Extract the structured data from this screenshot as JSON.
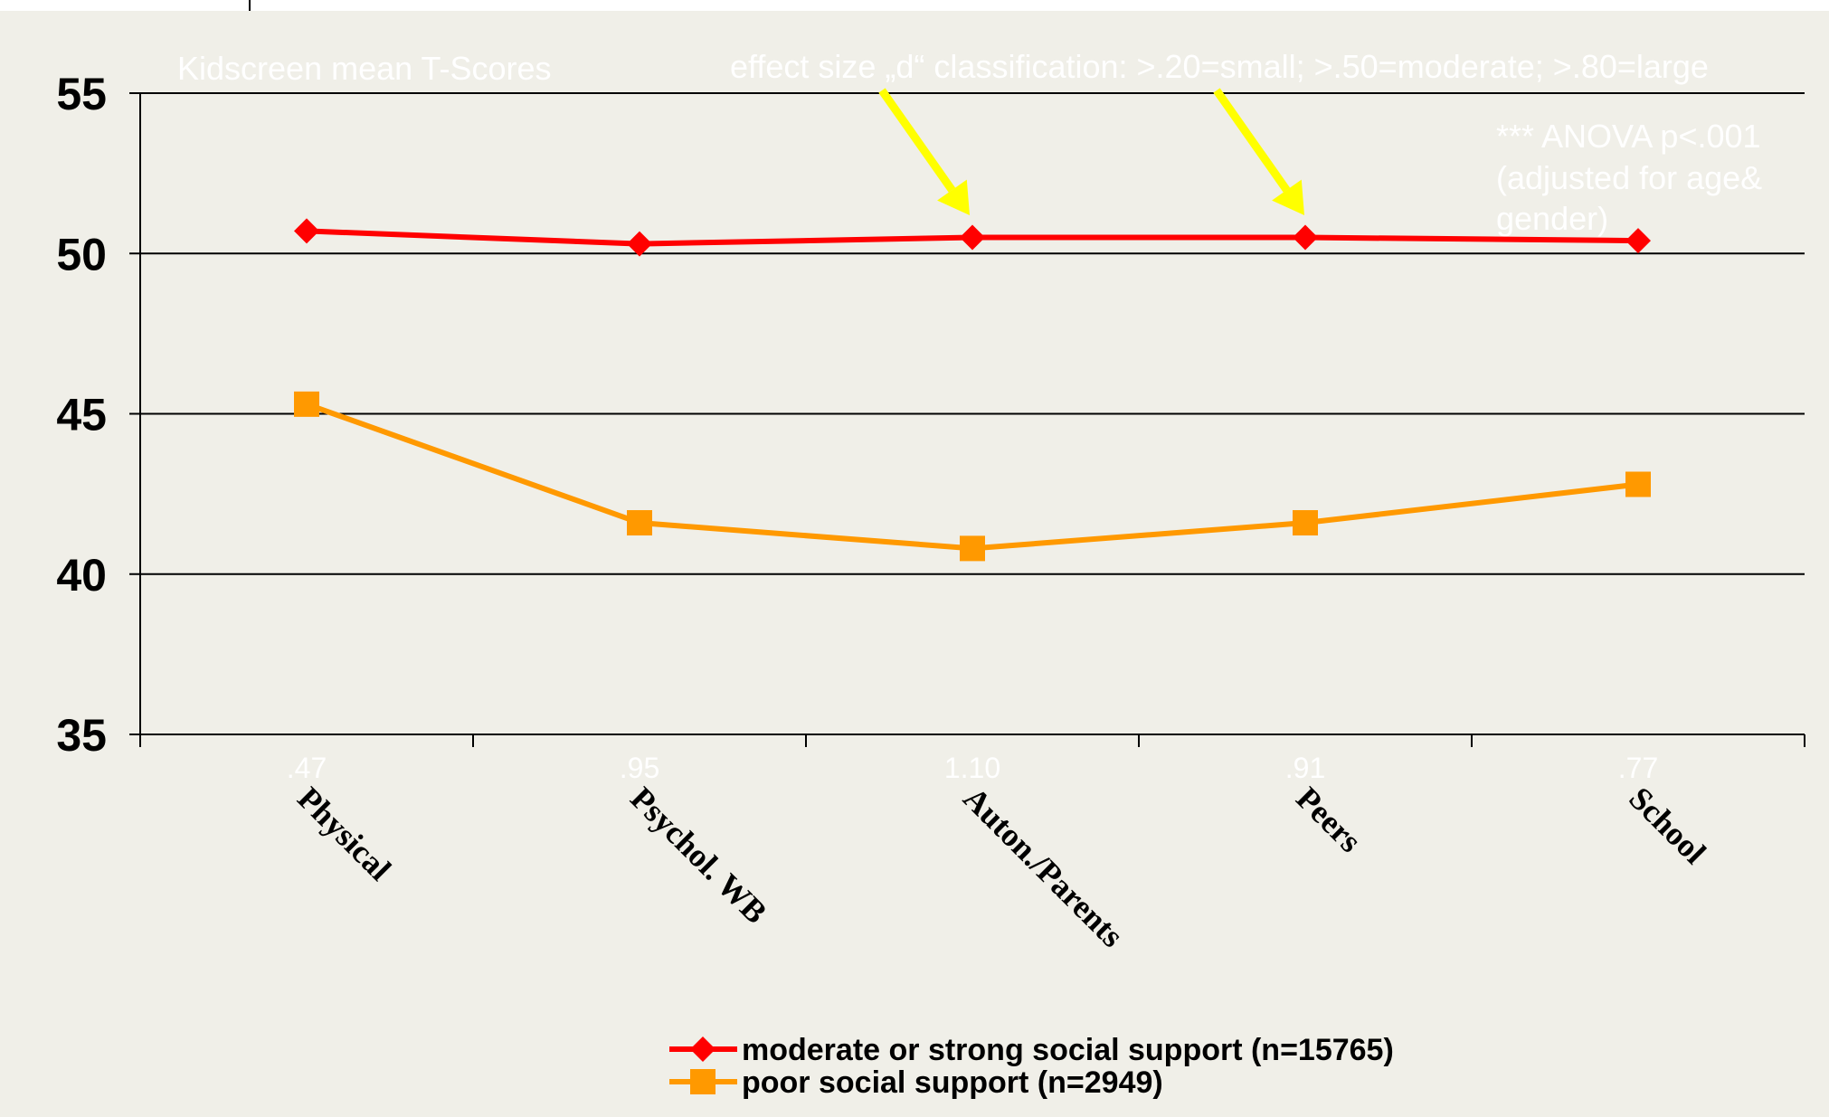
{
  "chart_data": {
    "type": "line",
    "title": "Kidscreen mean T-Scores",
    "categories": [
      "Physical",
      "Psychol. WB",
      "Auton./Parents",
      "Peers",
      "School"
    ],
    "category_effect_sizes": [
      ".47",
      ".95",
      "1.10",
      ".91",
      ".77"
    ],
    "ylim": [
      35,
      55
    ],
    "yticks": [
      "35",
      "40",
      "45",
      "50",
      "55"
    ],
    "xlabel": "",
    "ylabel": "",
    "grid": true,
    "legend_position": "bottom",
    "series": [
      {
        "name": "moderate or strong social support (n=15765)",
        "color": "#ff0000",
        "marker": "diamond",
        "values": [
          50.7,
          50.3,
          50.5,
          50.5,
          50.4
        ]
      },
      {
        "name": "poor social support (n=2949)",
        "color": "#ff9900",
        "marker": "square",
        "values": [
          45.3,
          41.6,
          40.8,
          41.6,
          42.8
        ]
      }
    ],
    "annotations": {
      "effect_size_note": "effect size „d“ classification: >.20=small; >.50=moderate; >.80=large",
      "anova_note": [
        "*** ANOVA p<.001",
        "(adjusted for age&",
        "gender)"
      ]
    },
    "colors": {
      "background": "#f0efe8",
      "arrow": "#ffff00"
    }
  }
}
